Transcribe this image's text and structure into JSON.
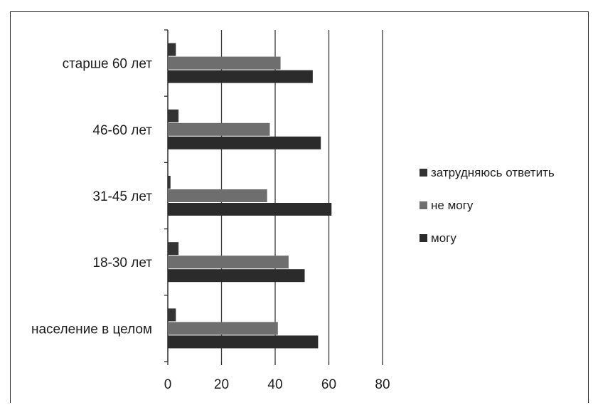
{
  "chart_data": {
    "type": "bar",
    "orientation": "horizontal",
    "categories": [
      "население в целом",
      "18-30 лет",
      "31-45 лет",
      "46-60 лет",
      "старше 60 лет"
    ],
    "series": [
      {
        "name": "могу",
        "values": [
          56,
          51,
          61,
          57,
          54
        ],
        "color": "#2b2b2b"
      },
      {
        "name": "не могу",
        "values": [
          41,
          45,
          37,
          38,
          42
        ],
        "color": "#6e6e6e"
      },
      {
        "name": "затрудняюсь ответить",
        "values": [
          3,
          4,
          1,
          4,
          3
        ],
        "color": "#333333"
      }
    ],
    "xticks": [
      "0",
      "20",
      "40",
      "60",
      "80"
    ],
    "xlim": [
      0,
      80
    ],
    "grid": "vertical",
    "legend_position": "right"
  }
}
